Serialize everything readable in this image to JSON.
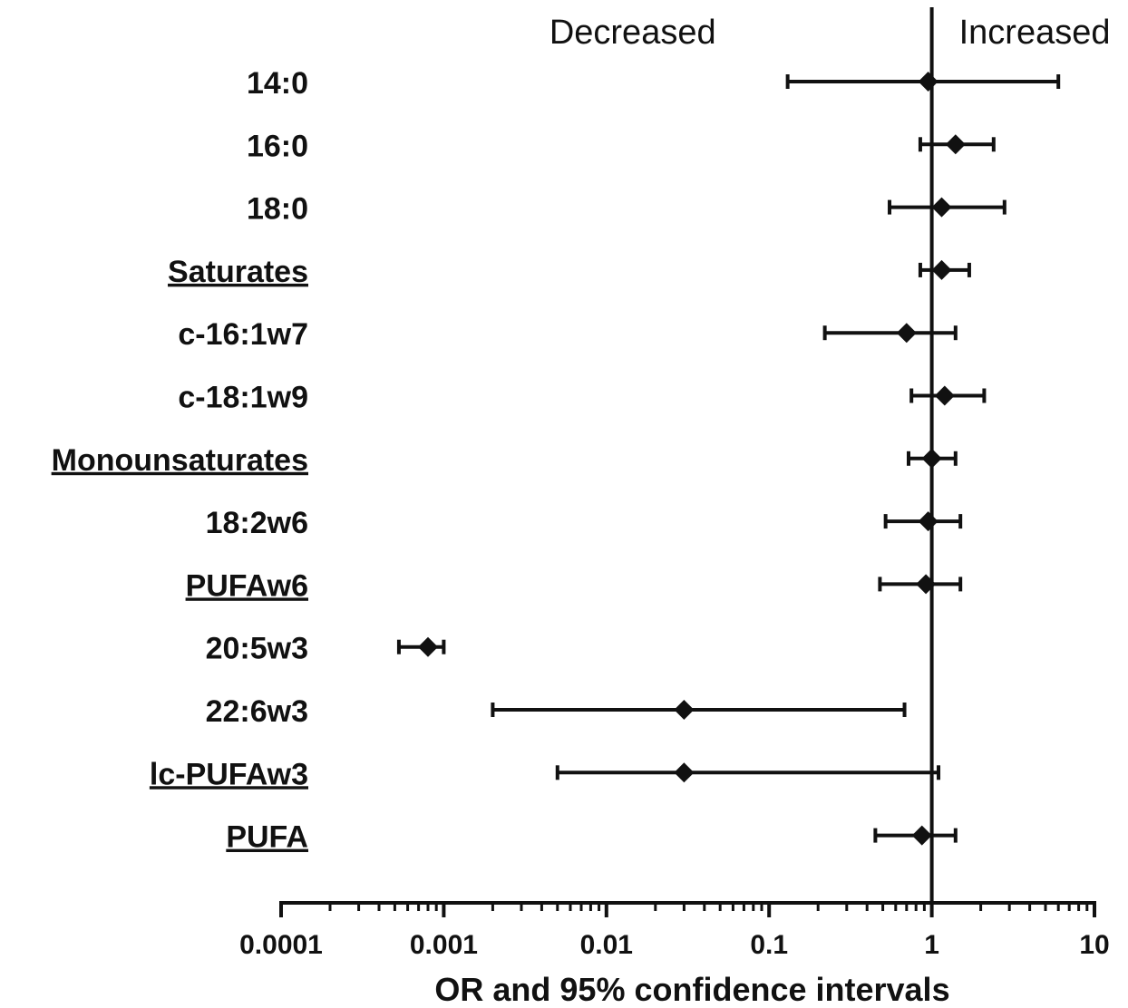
{
  "chart_data": {
    "type": "forest",
    "xlabel": "OR and 95% confidence intervals",
    "xscale": "log",
    "xlim": [
      0.0001,
      10
    ],
    "xticks": [
      {
        "value": 0.0001,
        "label": "0.0001"
      },
      {
        "value": 0.001,
        "label": "0.001"
      },
      {
        "value": 0.01,
        "label": "0.01"
      },
      {
        "value": 0.1,
        "label": "0.1"
      },
      {
        "value": 1,
        "label": "1"
      },
      {
        "value": 10,
        "label": "10"
      }
    ],
    "reference_line": 1,
    "annotations": {
      "left": "Decreased",
      "right": "Increased"
    },
    "rows": [
      {
        "label": "14:0",
        "underline": false,
        "or": 0.95,
        "lo": 0.13,
        "hi": 6.0
      },
      {
        "label": "16:0",
        "underline": false,
        "or": 1.4,
        "lo": 0.85,
        "hi": 2.4
      },
      {
        "label": "18:0",
        "underline": false,
        "or": 1.15,
        "lo": 0.55,
        "hi": 2.8
      },
      {
        "label": "Saturates",
        "underline": true,
        "or": 1.15,
        "lo": 0.85,
        "hi": 1.7
      },
      {
        "label": "c-16:1w7",
        "underline": false,
        "or": 0.7,
        "lo": 0.22,
        "hi": 1.4
      },
      {
        "label": "c-18:1w9",
        "underline": false,
        "or": 1.2,
        "lo": 0.75,
        "hi": 2.1
      },
      {
        "label": "Monounsaturates",
        "underline": true,
        "or": 1.0,
        "lo": 0.72,
        "hi": 1.4
      },
      {
        "label": "18:2w6",
        "underline": false,
        "or": 0.95,
        "lo": 0.52,
        "hi": 1.5
      },
      {
        "label": "PUFAw6",
        "underline": true,
        "or": 0.92,
        "lo": 0.48,
        "hi": 1.5
      },
      {
        "label": "20:5w3",
        "underline": false,
        "or": 0.0008,
        "lo": 0.00053,
        "hi": 0.001
      },
      {
        "label": "22:6w3",
        "underline": false,
        "or": 0.03,
        "lo": 0.002,
        "hi": 0.68
      },
      {
        "label": "lc-PUFAw3",
        "underline": true,
        "or": 0.03,
        "lo": 0.005,
        "hi": 1.1
      },
      {
        "label": "PUFA",
        "underline": true,
        "or": 0.87,
        "lo": 0.45,
        "hi": 1.4
      }
    ]
  }
}
